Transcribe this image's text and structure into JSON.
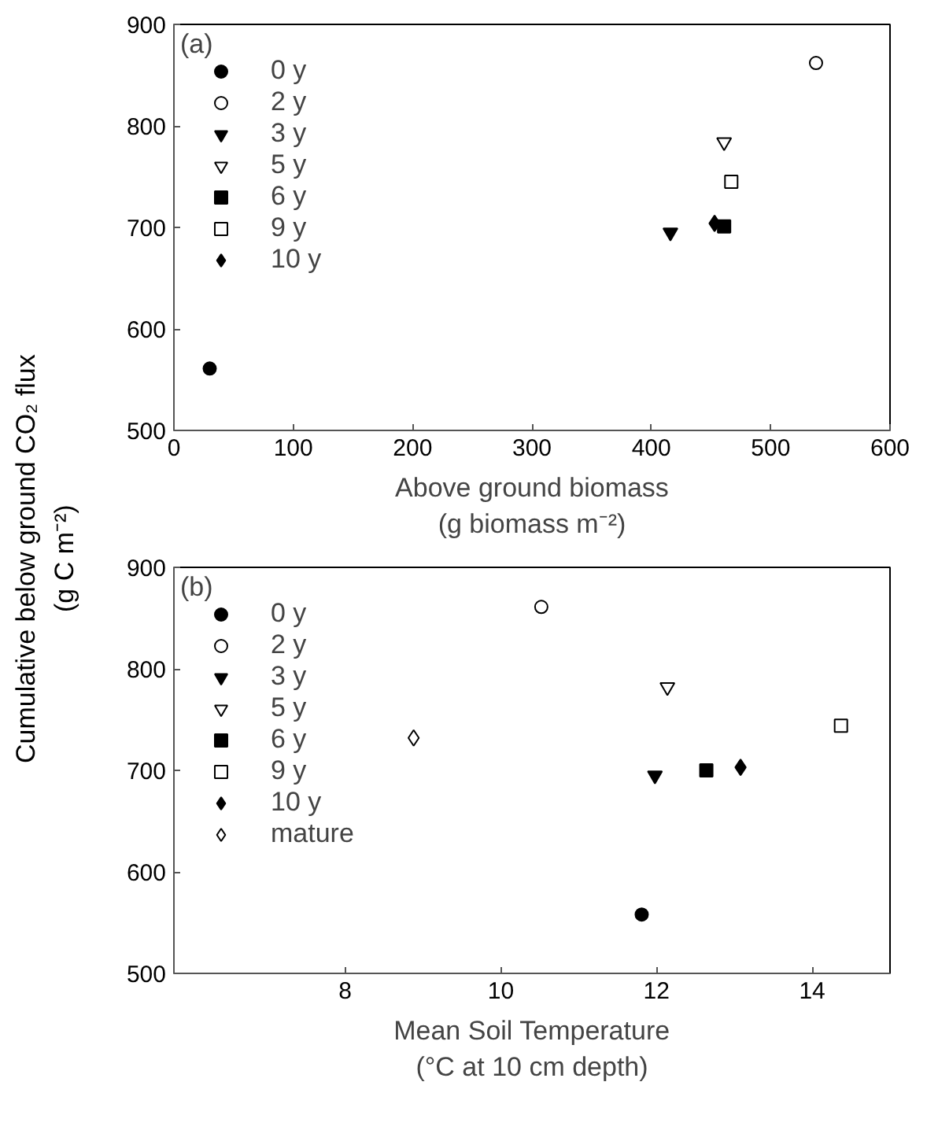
{
  "chart_data": [
    {
      "type": "scatter",
      "annotations": [
        "(a)"
      ],
      "xlabel": "Above ground biomass\n(g biomass m⁻²)",
      "ylabel": "Cumulative below ground CO₂ flux\n(g C m⁻²)",
      "xlim": [
        0,
        600
      ],
      "xticks": [
        0,
        100,
        200,
        300,
        400,
        500,
        600
      ],
      "ylim": [
        500,
        900
      ],
      "yticks": [
        500,
        600,
        700,
        800,
        900
      ],
      "grid": false,
      "legend": "top left",
      "series": [
        {
          "name": "0 y",
          "color": "#000000",
          "marker": "circle",
          "x": [
            30
          ],
          "values": [
            561
          ]
        },
        {
          "name": "2 y",
          "color": "#ffffff",
          "marker": "circle",
          "x": [
            538
          ],
          "values": [
            862
          ]
        },
        {
          "name": "3 y",
          "color": "#000000",
          "marker": "triangle",
          "x": [
            416
          ],
          "values": [
            695
          ]
        },
        {
          "name": "5 y",
          "color": "#ffffff",
          "marker": "triangle",
          "x": [
            461
          ],
          "values": [
            784
          ]
        },
        {
          "name": "6 y",
          "color": "#000000",
          "marker": "square",
          "x": [
            461
          ],
          "values": [
            701
          ]
        },
        {
          "name": "9 y",
          "color": "#ffffff",
          "marker": "square",
          "x": [
            467
          ],
          "values": [
            745
          ]
        },
        {
          "name": "10 y",
          "color": "#000000",
          "marker": "diamond",
          "x": [
            453
          ],
          "values": [
            704
          ]
        }
      ]
    },
    {
      "type": "scatter",
      "annotations": [
        "(b)"
      ],
      "xlabel": "Mean Soil Temperature\n(°C at 10 cm depth)",
      "xlim": [
        5.8,
        15
      ],
      "xticks": [
        8,
        10,
        12,
        14
      ],
      "ylim": [
        500,
        900
      ],
      "yticks": [
        500,
        600,
        700,
        800,
        900
      ],
      "grid": false,
      "legend": "top left",
      "series": [
        {
          "name": "0 y",
          "color": "#000000",
          "marker": "circle",
          "x": [
            11.81
          ],
          "values": [
            558
          ]
        },
        {
          "name": "2 y",
          "color": "#ffffff",
          "marker": "circle",
          "x": [
            10.52
          ],
          "values": [
            861
          ]
        },
        {
          "name": "3 y",
          "color": "#000000",
          "marker": "triangle",
          "x": [
            11.98
          ],
          "values": [
            695
          ]
        },
        {
          "name": "5 y",
          "color": "#ffffff",
          "marker": "triangle",
          "x": [
            12.14
          ],
          "values": [
            782
          ]
        },
        {
          "name": "6 y",
          "color": "#000000",
          "marker": "square",
          "x": [
            12.64
          ],
          "values": [
            700
          ]
        },
        {
          "name": "9 y",
          "color": "#ffffff",
          "marker": "square",
          "x": [
            14.37
          ],
          "values": [
            744
          ]
        },
        {
          "name": "10 y",
          "color": "#000000",
          "marker": "diamond",
          "x": [
            13.08
          ],
          "values": [
            703
          ]
        },
        {
          "name": "mature",
          "color": "#ffffff",
          "marker": "diamond",
          "x": [
            8.88
          ],
          "values": [
            732
          ]
        }
      ]
    }
  ]
}
